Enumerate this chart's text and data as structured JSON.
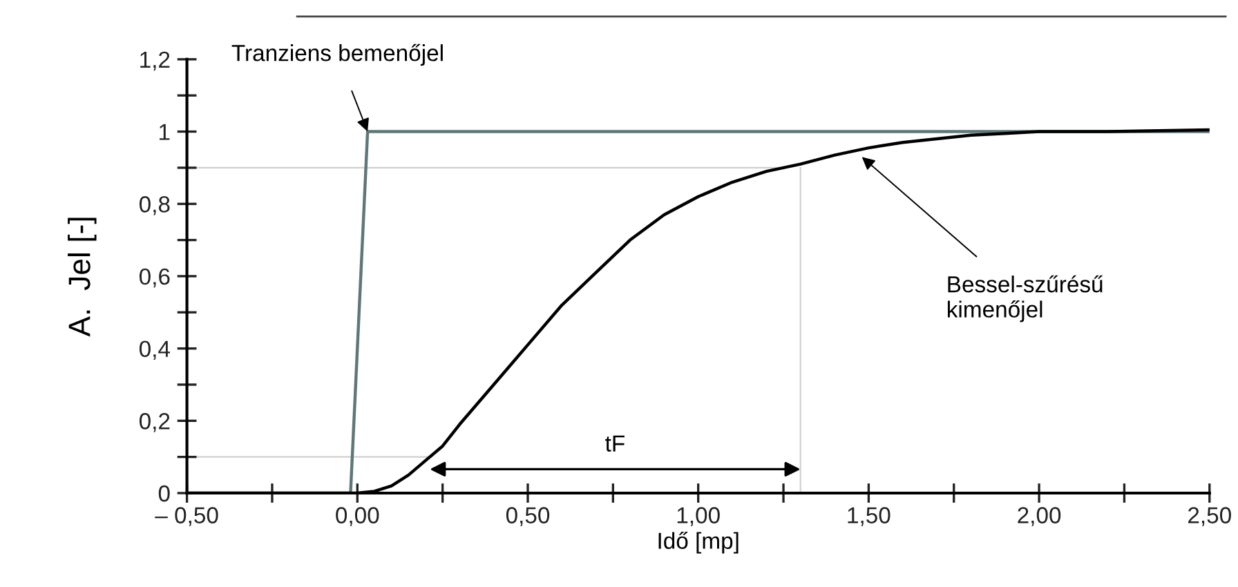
{
  "chart_data": {
    "type": "line",
    "xlabel": "Idő [mp]",
    "ylabel": "A.  Jel [-]",
    "xlim": [
      -0.5,
      2.5
    ],
    "ylim": [
      0,
      1.2
    ],
    "xticks": [
      {
        "value": -0.5,
        "label": "– 0,50"
      },
      {
        "value": -0.25,
        "label": null
      },
      {
        "value": 0,
        "label": "0,00"
      },
      {
        "value": 0.25,
        "label": null
      },
      {
        "value": 0.5,
        "label": "0,50"
      },
      {
        "value": 0.75,
        "label": null
      },
      {
        "value": 1,
        "label": "1,00"
      },
      {
        "value": 1.25,
        "label": null
      },
      {
        "value": 1.5,
        "label": "1,50"
      },
      {
        "value": 1.75,
        "label": null
      },
      {
        "value": 2,
        "label": "2,00"
      },
      {
        "value": 2.25,
        "label": null
      },
      {
        "value": 2.5,
        "label": "2,50"
      }
    ],
    "yticks": [
      0,
      {
        "value": 0.1,
        "label": null
      },
      {
        "value": 0.2,
        "label": "0,2"
      },
      {
        "value": 0.3,
        "label": null
      },
      {
        "value": 0.4,
        "label": "0,4"
      },
      {
        "value": 0.5,
        "label": null
      },
      {
        "value": 0.6,
        "label": "0,6"
      },
      {
        "value": 0.7,
        "label": null
      },
      {
        "value": 0.8,
        "label": "0,8"
      },
      {
        "value": 0.9,
        "label": null
      },
      1,
      {
        "value": 1.1,
        "label": null
      },
      {
        "value": 1.2,
        "label": "1,2"
      }
    ],
    "series": [
      {
        "color": "#5f7778",
        "x": [
          -0.5,
          -0.02,
          0.03,
          2.5
        ],
        "values": [
          0,
          0,
          1,
          1
        ]
      },
      {
        "color": "#000000",
        "x": [
          -0.5,
          0.0,
          0.05,
          0.1,
          0.15,
          0.2,
          0.25,
          0.3,
          0.4,
          0.5,
          0.6,
          0.7,
          0.8,
          0.9,
          1.0,
          1.1,
          1.2,
          1.3,
          1.4,
          1.5,
          1.6,
          1.7,
          1.8,
          1.9,
          2.0,
          2.2,
          2.5
        ],
        "values": [
          0,
          0,
          0.005,
          0.02,
          0.05,
          0.09,
          0.13,
          0.19,
          0.3,
          0.41,
          0.52,
          0.61,
          0.7,
          0.77,
          0.82,
          0.86,
          0.89,
          0.91,
          0.935,
          0.955,
          0.97,
          0.98,
          0.99,
          0.995,
          1.0,
          1.0,
          1.005
        ]
      }
    ],
    "ref_lines": [
      {
        "axis": "y",
        "value": 0.9,
        "label": null,
        "color": "#d0d0d0"
      },
      {
        "axis": "y",
        "value": 0.1,
        "label": null,
        "color": "#d0d0d0"
      },
      {
        "axis": "x",
        "value": 1.3,
        "label": null,
        "color": "#d0d0d0"
      }
    ],
    "annotations": [
      {
        "text": "Tranziens bemenőjel",
        "x": 0.03,
        "y": 1
      },
      {
        "text": "Bessel-szűrésű\nkimenőjel",
        "x": 1.48,
        "y": 0.93
      },
      "tF"
    ],
    "grid": false,
    "legend": false,
    "marker": "none",
    "line_style": "solid"
  }
}
